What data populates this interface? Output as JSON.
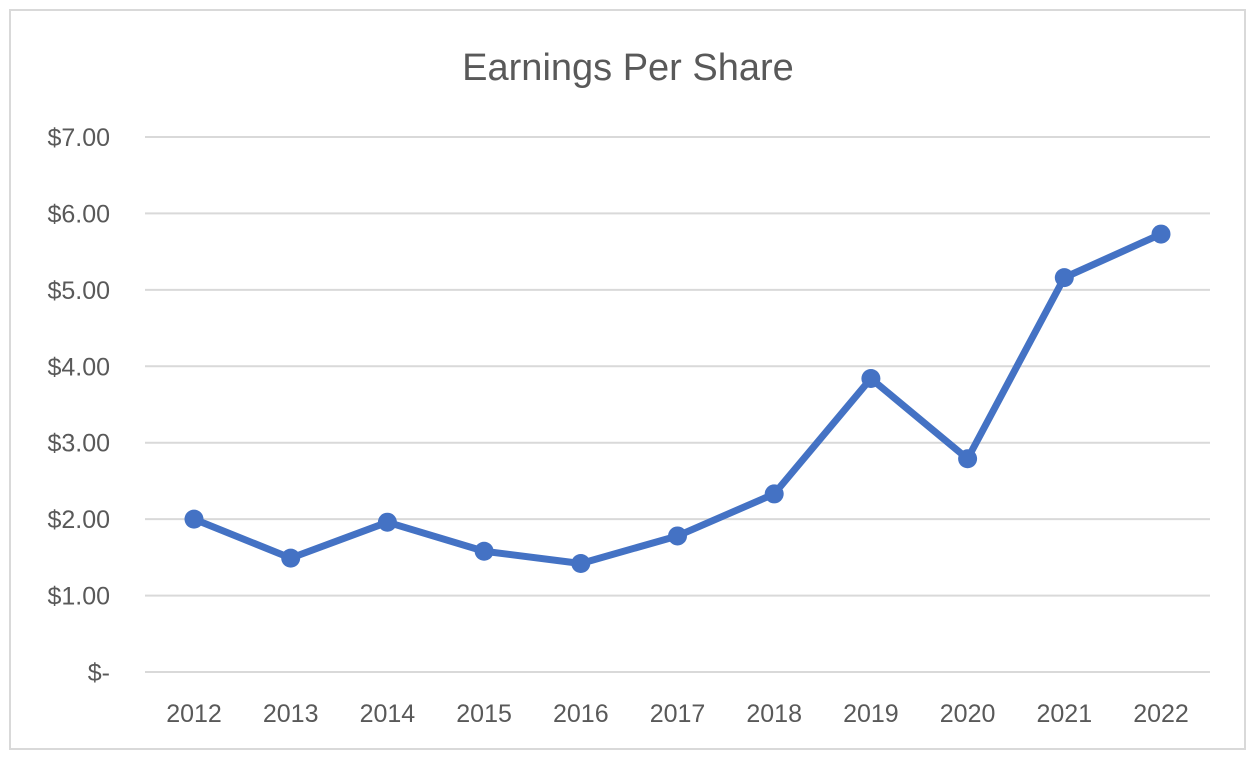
{
  "chart_data": {
    "type": "line",
    "title": "Earnings Per Share",
    "xlabel": "",
    "ylabel": "",
    "categories": [
      "2012",
      "2013",
      "2014",
      "2015",
      "2016",
      "2017",
      "2018",
      "2019",
      "2020",
      "2021",
      "2022"
    ],
    "series": [
      {
        "values": [
          2.0,
          1.49,
          1.96,
          1.58,
          1.42,
          1.78,
          2.33,
          3.84,
          2.79,
          5.16,
          5.73
        ]
      }
    ],
    "ylim": [
      0,
      7
    ],
    "y_ticks": [
      0,
      1,
      2,
      3,
      4,
      5,
      6,
      7
    ],
    "y_tick_labels": [
      "$-",
      "$1.00",
      "$2.00",
      "$3.00",
      "$4.00",
      "$5.00",
      "$6.00",
      "$7.00"
    ],
    "grid": true,
    "legend": "none",
    "colors": {
      "series": "#4472c4",
      "grid": "#d9d9d9",
      "text": "#595959"
    }
  }
}
